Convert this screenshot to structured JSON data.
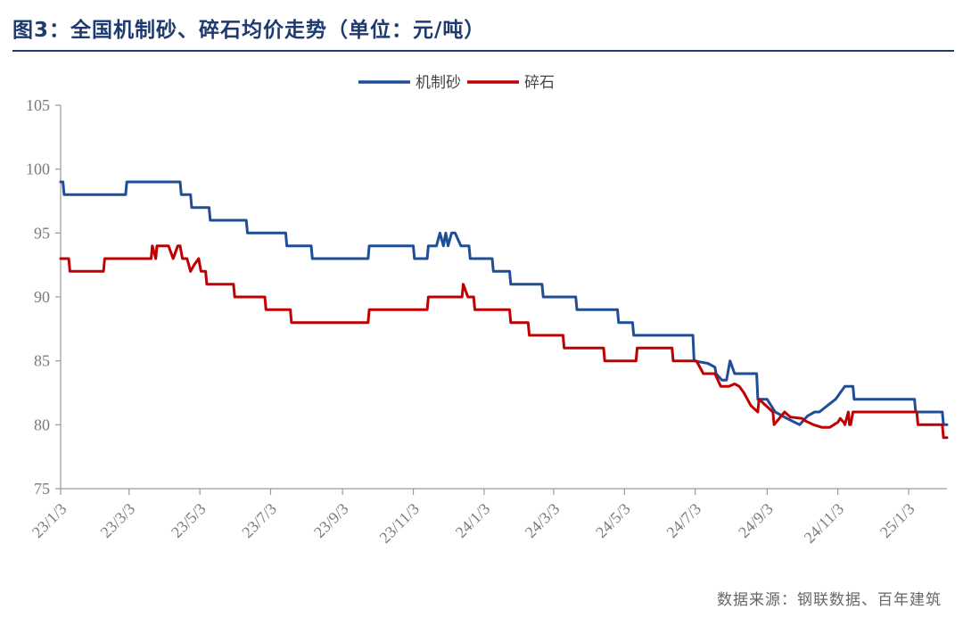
{
  "chart_data": {
    "type": "line",
    "title": "图3：全国机制砂、碎石均价走势（单位：元/吨）",
    "xlabel": "",
    "ylabel": "",
    "ylim": [
      75,
      105
    ],
    "yticks": [
      75,
      80,
      85,
      90,
      95,
      100,
      105
    ],
    "x_tick_labels": [
      "23/1/3",
      "23/3/3",
      "23/5/3",
      "23/7/3",
      "23/9/3",
      "23/11/3",
      "24/1/3",
      "24/3/3",
      "24/5/3",
      "24/7/3",
      "24/9/3",
      "24/11/3",
      "25/1/3"
    ],
    "legend_position": "top-center",
    "grid": false,
    "series": [
      {
        "name": "机制砂",
        "color": "#1f4e96",
        "x": [
          "2023-01-03",
          "2023-01-05",
          "2023-01-06",
          "2023-02-28",
          "2023-03-01",
          "2023-04-16",
          "2023-04-17",
          "2023-04-25",
          "2023-04-26",
          "2023-05-11",
          "2023-05-12",
          "2023-06-12",
          "2023-06-13",
          "2023-07-16",
          "2023-07-17",
          "2023-08-07",
          "2023-08-08",
          "2023-09-25",
          "2023-09-26",
          "2023-11-03",
          "2023-11-04",
          "2023-11-15",
          "2023-11-16",
          "2023-11-23",
          "2023-11-26",
          "2023-11-29",
          "2023-12-01",
          "2023-12-03",
          "2023-12-06",
          "2023-12-09",
          "2023-12-14",
          "2023-12-21",
          "2023-12-22",
          "2024-01-10",
          "2024-01-11",
          "2024-01-25",
          "2024-01-26",
          "2024-02-22",
          "2024-02-23",
          "2024-03-22",
          "2024-03-23",
          "2024-04-27",
          "2024-04-28",
          "2024-05-10",
          "2024-05-11",
          "2024-07-01",
          "2024-07-02",
          "2024-07-14",
          "2024-07-20",
          "2024-07-21",
          "2024-07-26",
          "2024-07-30",
          "2024-08-02",
          "2024-08-06",
          "2024-08-10",
          "2024-08-25",
          "2024-08-26",
          "2024-09-03",
          "2024-09-10",
          "2024-09-20",
          "2024-10-01",
          "2024-10-08",
          "2024-10-14",
          "2024-10-18",
          "2024-10-25",
          "2024-11-01",
          "2024-11-09",
          "2024-11-16",
          "2024-11-17",
          "2024-11-28",
          "2024-12-01",
          "2025-01-08",
          "2025-01-09",
          "2025-02-01",
          "2025-02-02",
          "2025-02-05"
        ],
        "values": [
          99,
          99,
          98,
          98,
          99,
          99,
          98,
          98,
          97,
          97,
          96,
          96,
          95,
          95,
          94,
          94,
          93,
          93,
          94,
          94,
          93,
          93,
          94,
          94,
          95,
          94,
          95,
          94,
          95,
          95,
          94,
          94,
          93,
          93,
          92,
          92,
          91,
          91,
          90,
          90,
          89,
          89,
          88,
          88,
          87,
          87,
          85,
          84.8,
          84.5,
          84,
          83.5,
          83.5,
          85,
          84,
          84,
          84,
          82,
          82,
          81,
          80.5,
          80,
          80.7,
          81,
          81,
          81.5,
          82,
          83,
          83,
          82,
          82,
          82,
          82,
          81,
          81,
          80,
          80
        ]
      },
      {
        "name": "碎石",
        "color": "#c00000",
        "x": [
          "2023-01-03",
          "2023-01-10",
          "2023-01-11",
          "2023-02-09",
          "2023-02-10",
          "2023-03-22",
          "2023-03-23",
          "2023-03-26",
          "2023-03-27",
          "2023-04-04",
          "2023-04-06",
          "2023-04-10",
          "2023-04-14",
          "2023-04-16",
          "2023-04-18",
          "2023-04-22",
          "2023-04-25",
          "2023-04-28",
          "2023-05-02",
          "2023-05-04",
          "2023-05-08",
          "2023-05-09",
          "2023-05-13",
          "2023-05-14",
          "2023-06-01",
          "2023-06-02",
          "2023-06-28",
          "2023-06-29",
          "2023-07-20",
          "2023-07-21",
          "2023-09-25",
          "2023-09-26",
          "2023-11-15",
          "2023-11-16",
          "2023-12-15",
          "2023-12-16",
          "2023-12-20",
          "2023-12-25",
          "2023-12-26",
          "2024-01-25",
          "2024-01-26",
          "2024-02-10",
          "2024-02-11",
          "2024-03-11",
          "2024-03-12",
          "2024-04-15",
          "2024-04-16",
          "2024-05-13",
          "2024-05-14",
          "2024-05-16",
          "2024-05-18",
          "2024-06-13",
          "2024-06-14",
          "2024-07-04",
          "2024-07-10",
          "2024-07-20",
          "2024-07-25",
          "2024-08-01",
          "2024-08-06",
          "2024-08-10",
          "2024-08-14",
          "2024-08-17",
          "2024-08-20",
          "2024-08-26",
          "2024-08-27",
          "2024-09-08",
          "2024-09-09",
          "2024-09-18",
          "2024-09-23",
          "2024-10-03",
          "2024-10-06",
          "2024-10-13",
          "2024-10-20",
          "2024-10-27",
          "2024-11-03",
          "2024-11-05",
          "2024-11-08",
          "2024-11-09",
          "2024-11-12",
          "2024-11-13",
          "2024-11-14",
          "2024-11-16",
          "2024-12-01",
          "2025-01-10",
          "2025-01-11",
          "2025-02-01",
          "2025-02-02",
          "2025-02-05"
        ],
        "values": [
          93,
          93,
          92,
          92,
          93,
          93,
          94,
          93,
          94,
          94,
          94,
          93,
          94,
          94,
          93,
          93,
          92,
          92.5,
          93,
          92,
          92,
          91,
          91,
          91,
          91,
          90,
          90,
          89,
          89,
          88,
          88,
          89,
          89,
          90,
          90,
          91,
          90,
          90,
          89,
          89,
          88,
          88,
          87,
          87,
          86,
          86,
          85,
          85,
          86,
          86,
          86,
          86,
          85,
          85,
          84,
          84,
          83,
          83,
          83.2,
          83,
          82.5,
          82,
          81.5,
          81,
          82,
          81,
          80,
          81,
          80.6,
          80.5,
          80.3,
          80,
          79.8,
          79.8,
          80.2,
          80.5,
          80.2,
          80,
          81,
          80,
          80,
          81,
          81,
          81,
          80,
          80,
          79,
          79
        ]
      }
    ]
  },
  "source": "数据来源：钢联数据、百年建筑"
}
